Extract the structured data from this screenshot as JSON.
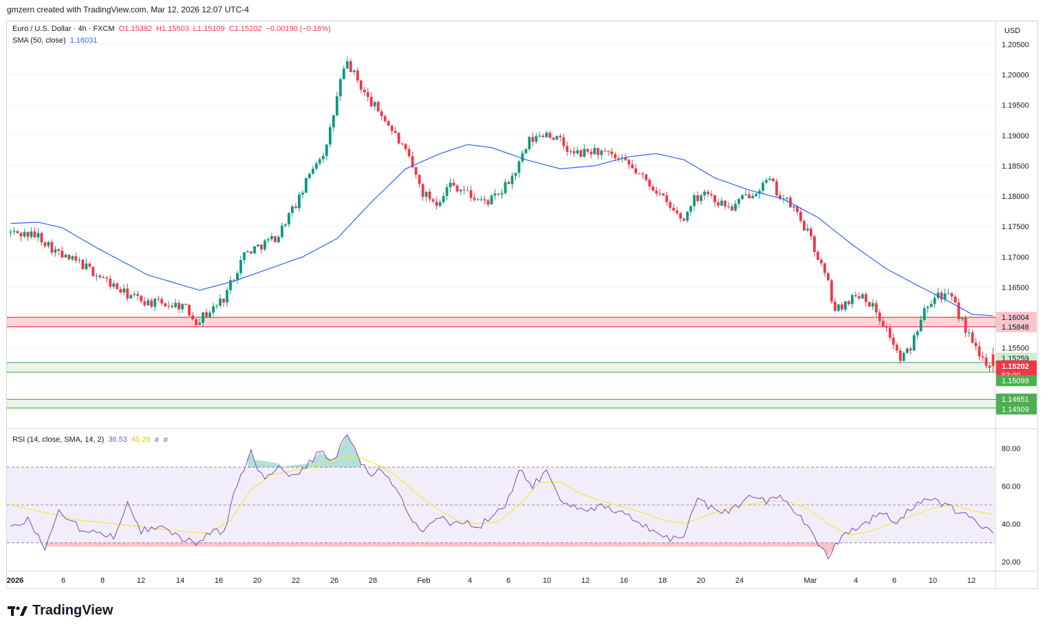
{
  "header": {
    "caption": "gmzern created with TradingView.com, Mar 12, 2026 12:07 UTC-4"
  },
  "legend": {
    "symbol": "Euro / U.S. Dollar · 4h · FXCM",
    "open": "O1.15392",
    "high": "H1.15503",
    "low": "L1.15109",
    "close": "C1.15202",
    "change": "−0.00190 (−0.16%)",
    "sma_label": "SMA (50, close)",
    "sma_value": "1.16031",
    "rsi_label": "RSI (14, close, SMA, 14, 2)",
    "rsi_value": "36.53",
    "rsi_ma_value": "45.26",
    "rsi_extra1": "ø",
    "rsi_extra2": "ø"
  },
  "price_axis": {
    "currency": "USD",
    "ticks": [
      "1.20500",
      "1.20000",
      "1.19500",
      "1.19000",
      "1.18500",
      "1.18000",
      "1.17500",
      "1.17000",
      "1.16500",
      "1.16000",
      "1.15500"
    ]
  },
  "rsi_axis": {
    "ticks": [
      "80.00",
      "60.00",
      "40.00",
      "20.00"
    ]
  },
  "time_axis": {
    "labels": [
      "2026",
      "6",
      "8",
      "12",
      "14",
      "16",
      "20",
      "22",
      "26",
      "28",
      "Feb",
      "4",
      "6",
      "10",
      "12",
      "16",
      "18",
      "20",
      "24",
      "Mar",
      "4",
      "6",
      "10",
      "12"
    ]
  },
  "badges": {
    "zone_red_top": "1.16004",
    "zone_red_bottom": "1.15848",
    "zone_green_top": "1.15259",
    "current_price": "1.15202",
    "countdown": "53:00",
    "zone_green_bottom": "1.15099",
    "zone_low_top": "1.14651",
    "zone_low_bottom": "1.14509"
  },
  "brand": {
    "name": "TradingView"
  },
  "colors": {
    "up": "#089981",
    "down": "#f23645",
    "sma": "#2962ff",
    "rsi": "#7e57c2",
    "rsi_ma": "#f5e642",
    "zone_red": "#f23645",
    "zone_green": "#4caf50"
  },
  "chart_data": {
    "type": "candlestick",
    "symbol": "EURUSD",
    "timeframe": "4h",
    "ohlc_last": {
      "open": 1.15392,
      "high": 1.15503,
      "low": 1.15109,
      "close": 1.15202
    },
    "price_range": [
      1.1418,
      1.2088
    ],
    "zones": [
      {
        "top": 1.16004,
        "bottom": 1.15848,
        "color": "red"
      },
      {
        "top": 1.15259,
        "bottom": 1.15099,
        "color": "green"
      },
      {
        "top": 1.14651,
        "bottom": 1.14509,
        "color": "green"
      }
    ],
    "close_path": [
      [
        0,
        1.174
      ],
      [
        8,
        1.1735
      ],
      [
        15,
        1.17
      ],
      [
        20,
        1.169
      ],
      [
        28,
        1.166
      ],
      [
        33,
        1.164
      ],
      [
        40,
        1.1625
      ],
      [
        50,
        1.162
      ],
      [
        54,
        1.1595
      ],
      [
        58,
        1.161
      ],
      [
        62,
        1.1632
      ],
      [
        68,
        1.1705
      ],
      [
        73,
        1.172
      ],
      [
        78,
        1.1735
      ],
      [
        80,
        1.176
      ],
      [
        84,
        1.1795
      ],
      [
        88,
        1.185
      ],
      [
        92,
        1.188
      ],
      [
        96,
        1.199
      ],
      [
        98,
        1.202
      ],
      [
        100,
        1.2
      ],
      [
        104,
        1.196
      ],
      [
        108,
        1.1935
      ],
      [
        112,
        1.19
      ],
      [
        116,
        1.186
      ],
      [
        120,
        1.1805
      ],
      [
        124,
        1.179
      ],
      [
        128,
        1.182
      ],
      [
        132,
        1.181
      ],
      [
        134,
        1.18
      ],
      [
        138,
        1.179
      ],
      [
        142,
        1.18
      ],
      [
        147,
        1.184
      ],
      [
        151,
        1.189
      ],
      [
        156,
        1.1905
      ],
      [
        160,
        1.189
      ],
      [
        163,
        1.187
      ],
      [
        166,
        1.187
      ],
      [
        170,
        1.1875
      ],
      [
        175,
        1.1865
      ],
      [
        180,
        1.185
      ],
      [
        184,
        1.183
      ],
      [
        188,
        1.181
      ],
      [
        192,
        1.178
      ],
      [
        196,
        1.176
      ],
      [
        198,
        1.179
      ],
      [
        202,
        1.181
      ],
      [
        206,
        1.179
      ],
      [
        210,
        1.178
      ],
      [
        214,
        1.18
      ],
      [
        218,
        1.1815
      ],
      [
        221,
        1.1825
      ],
      [
        224,
        1.18
      ],
      [
        228,
        1.178
      ],
      [
        232,
        1.174
      ],
      [
        235,
        1.17
      ],
      [
        238,
        1.1655
      ],
      [
        240,
        1.161
      ],
      [
        244,
        1.163
      ],
      [
        248,
        1.164
      ],
      [
        252,
        1.161
      ],
      [
        256,
        1.157
      ],
      [
        259,
        1.153
      ],
      [
        262,
        1.155
      ],
      [
        266,
        1.162
      ],
      [
        270,
        1.164
      ],
      [
        274,
        1.163
      ],
      [
        278,
        1.158
      ],
      [
        282,
        1.1535
      ],
      [
        286,
        1.152
      ]
    ],
    "sma_path": [
      [
        0,
        1.1755
      ],
      [
        8,
        1.1757
      ],
      [
        15,
        1.1748
      ],
      [
        25,
        1.1715
      ],
      [
        40,
        1.167
      ],
      [
        55,
        1.1645
      ],
      [
        65,
        1.166
      ],
      [
        75,
        1.168
      ],
      [
        85,
        1.17
      ],
      [
        95,
        1.173
      ],
      [
        105,
        1.179
      ],
      [
        115,
        1.1845
      ],
      [
        125,
        1.187
      ],
      [
        133,
        1.1885
      ],
      [
        140,
        1.188
      ],
      [
        150,
        1.186
      ],
      [
        160,
        1.1845
      ],
      [
        170,
        1.185
      ],
      [
        180,
        1.1865
      ],
      [
        188,
        1.187
      ],
      [
        196,
        1.186
      ],
      [
        205,
        1.183
      ],
      [
        215,
        1.181
      ],
      [
        225,
        1.1795
      ],
      [
        235,
        1.1765
      ],
      [
        245,
        1.172
      ],
      [
        255,
        1.168
      ],
      [
        265,
        1.165
      ],
      [
        272,
        1.163
      ],
      [
        280,
        1.1605
      ],
      [
        286,
        1.1603
      ]
    ],
    "rsi_range": [
      15,
      90
    ],
    "rsi_levels": [
      70,
      50,
      30
    ],
    "rsi_path": [
      [
        0,
        38
      ],
      [
        5,
        42
      ],
      [
        10,
        28
      ],
      [
        14,
        48
      ],
      [
        20,
        38
      ],
      [
        26,
        36
      ],
      [
        30,
        32
      ],
      [
        34,
        53
      ],
      [
        38,
        36
      ],
      [
        44,
        40
      ],
      [
        50,
        32
      ],
      [
        54,
        30
      ],
      [
        58,
        36
      ],
      [
        62,
        35
      ],
      [
        66,
        62
      ],
      [
        70,
        78
      ],
      [
        74,
        62
      ],
      [
        78,
        72
      ],
      [
        82,
        65
      ],
      [
        86,
        70
      ],
      [
        90,
        78
      ],
      [
        94,
        73
      ],
      [
        98,
        88
      ],
      [
        100,
        80
      ],
      [
        104,
        66
      ],
      [
        108,
        70
      ],
      [
        112,
        60
      ],
      [
        116,
        44
      ],
      [
        120,
        36
      ],
      [
        124,
        44
      ],
      [
        128,
        40
      ],
      [
        132,
        42
      ],
      [
        136,
        38
      ],
      [
        140,
        44
      ],
      [
        144,
        48
      ],
      [
        148,
        70
      ],
      [
        152,
        60
      ],
      [
        156,
        68
      ],
      [
        160,
        52
      ],
      [
        164,
        50
      ],
      [
        168,
        48
      ],
      [
        172,
        49
      ],
      [
        176,
        46
      ],
      [
        180,
        44
      ],
      [
        184,
        40
      ],
      [
        188,
        35
      ],
      [
        192,
        32
      ],
      [
        196,
        34
      ],
      [
        200,
        54
      ],
      [
        204,
        48
      ],
      [
        208,
        46
      ],
      [
        212,
        50
      ],
      [
        216,
        56
      ],
      [
        220,
        52
      ],
      [
        224,
        54
      ],
      [
        228,
        48
      ],
      [
        232,
        38
      ],
      [
        236,
        28
      ],
      [
        238,
        23
      ],
      [
        242,
        34
      ],
      [
        246,
        38
      ],
      [
        250,
        42
      ],
      [
        254,
        46
      ],
      [
        258,
        40
      ],
      [
        262,
        48
      ],
      [
        266,
        54
      ],
      [
        270,
        52
      ],
      [
        274,
        48
      ],
      [
        278,
        44
      ],
      [
        282,
        40
      ],
      [
        286,
        37
      ]
    ],
    "rsi_ma_path": [
      [
        0,
        50
      ],
      [
        10,
        46
      ],
      [
        20,
        42
      ],
      [
        30,
        40
      ],
      [
        40,
        38
      ],
      [
        50,
        36
      ],
      [
        58,
        35
      ],
      [
        64,
        42
      ],
      [
        70,
        58
      ],
      [
        76,
        66
      ],
      [
        82,
        68
      ],
      [
        88,
        70
      ],
      [
        94,
        74
      ],
      [
        100,
        76
      ],
      [
        106,
        72
      ],
      [
        112,
        66
      ],
      [
        118,
        56
      ],
      [
        124,
        48
      ],
      [
        130,
        42
      ],
      [
        136,
        40
      ],
      [
        142,
        41
      ],
      [
        148,
        50
      ],
      [
        154,
        62
      ],
      [
        160,
        62
      ],
      [
        166,
        56
      ],
      [
        172,
        52
      ],
      [
        178,
        49
      ],
      [
        184,
        46
      ],
      [
        190,
        42
      ],
      [
        196,
        40
      ],
      [
        202,
        44
      ],
      [
        208,
        48
      ],
      [
        214,
        50
      ],
      [
        220,
        52
      ],
      [
        226,
        52
      ],
      [
        232,
        48
      ],
      [
        238,
        40
      ],
      [
        244,
        34
      ],
      [
        250,
        36
      ],
      [
        256,
        40
      ],
      [
        262,
        44
      ],
      [
        268,
        48
      ],
      [
        274,
        50
      ],
      [
        280,
        47
      ],
      [
        286,
        45
      ]
    ]
  }
}
